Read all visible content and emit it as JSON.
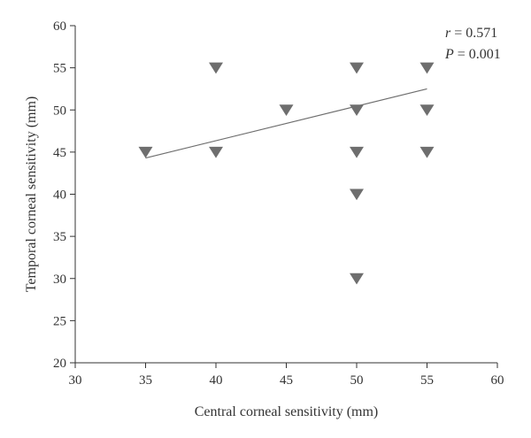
{
  "chart_data": {
    "type": "scatter",
    "title": "",
    "xlabel": "Central corneal sensitivity (mm)",
    "ylabel": "Temporal corneal sensitivity (mm)",
    "xlim": [
      30,
      60
    ],
    "ylim": [
      20,
      60
    ],
    "xticks": [
      "30",
      "35",
      "40",
      "45",
      "50",
      "55",
      "60"
    ],
    "yticks": [
      "20",
      "25",
      "30",
      "35",
      "40",
      "45",
      "50",
      "55",
      "60"
    ],
    "grid": false,
    "marker": "down-triangle",
    "point_color": "#6e6e6e",
    "points": [
      {
        "x": 35,
        "y": 45
      },
      {
        "x": 40,
        "y": 55
      },
      {
        "x": 40,
        "y": 45
      },
      {
        "x": 45,
        "y": 50
      },
      {
        "x": 50,
        "y": 55
      },
      {
        "x": 50,
        "y": 50
      },
      {
        "x": 50,
        "y": 45
      },
      {
        "x": 50,
        "y": 40
      },
      {
        "x": 50,
        "y": 30
      },
      {
        "x": 55,
        "y": 55
      },
      {
        "x": 55,
        "y": 50
      },
      {
        "x": 55,
        "y": 45
      }
    ],
    "regression_line": {
      "x": [
        35,
        55
      ],
      "y": [
        44.3,
        52.5
      ]
    },
    "annotation": {
      "r_label": "r",
      "r_value": " = 0.571",
      "p_label": "P",
      "p_value": " = 0.001"
    }
  }
}
